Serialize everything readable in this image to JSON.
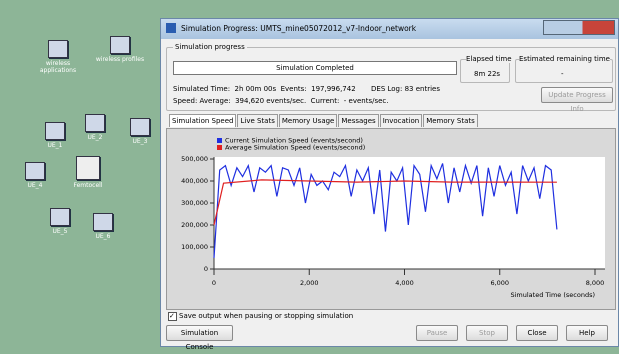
{
  "desktop": {
    "icons": [
      "wireless applications",
      "wireless profiles",
      "UE_1",
      "UE_2",
      "UE_3",
      "UE_4",
      "Femtocell",
      "UE_5",
      "UE_6"
    ]
  },
  "window": {
    "title": "Simulation Progress: UMTS_mine05072012_v7-Indoor_network",
    "progress_group": "Simulation progress",
    "progress_status": "Simulation Completed",
    "elapsed_label": "Elapsed time",
    "elapsed_value": "8m 22s",
    "remaining_label": "Estimated remaining time",
    "remaining_value": "-",
    "simulated_time": "Simulated Time:  2h 00m 00s  Events:  197,996,742",
    "des_log": "DES Log: 83 entries",
    "speed": "Speed: Average:  394,620 events/sec.  Current:  - events/sec.",
    "update_button": "Update Progress Info",
    "tabs": [
      "Simulation Speed",
      "Live Stats",
      "Memory Usage",
      "Messages",
      "Invocation",
      "Memory Stats"
    ],
    "checkbox": "Save output when pausing or stopping simulation",
    "buttons": [
      "Simulation Console",
      "Pause",
      "Stop",
      "Close",
      "Help"
    ]
  },
  "chart_data": {
    "type": "line",
    "xlabel": "Simulated Time (seconds)",
    "xlim": [
      0,
      8000
    ],
    "xticks": [
      0,
      {
        "value": 2000,
        "label": "2,000"
      },
      {
        "value": 4000,
        "label": "4,000"
      },
      {
        "value": 6000,
        "label": "6,000"
      },
      {
        "value": 8000,
        "label": "8,000"
      }
    ],
    "ylim": [
      0,
      500000
    ],
    "yticks": [
      0,
      {
        "value": 100000,
        "label": "100,000"
      },
      {
        "value": 200000,
        "label": "200,000"
      },
      {
        "value": 300000,
        "label": "300,000"
      },
      {
        "value": 400000,
        "label": "400,000"
      },
      {
        "value": 500000,
        "label": "500,000"
      }
    ],
    "series": [
      {
        "name": "Current Simulation Speed (events/second)",
        "color": "#1f2fe0",
        "x": [
          0,
          120,
          240,
          360,
          480,
          600,
          720,
          840,
          960,
          1080,
          1200,
          1320,
          1440,
          1560,
          1680,
          1800,
          1920,
          2040,
          2160,
          2280,
          2400,
          2520,
          2640,
          2760,
          2880,
          3000,
          3120,
          3240,
          3360,
          3480,
          3600,
          3720,
          3840,
          3960,
          4080,
          4200,
          4320,
          4440,
          4560,
          4680,
          4800,
          4920,
          5040,
          5160,
          5280,
          5400,
          5520,
          5640,
          5760,
          5880,
          6000,
          6120,
          6240,
          6360,
          6480,
          6600,
          6720,
          6840,
          6960,
          7080,
          7200
        ],
        "values": [
          50000,
          450000,
          470000,
          380000,
          460000,
          420000,
          470000,
          350000,
          460000,
          440000,
          470000,
          330000,
          460000,
          450000,
          380000,
          460000,
          300000,
          430000,
          380000,
          400000,
          360000,
          440000,
          420000,
          470000,
          330000,
          450000,
          400000,
          460000,
          250000,
          450000,
          170000,
          440000,
          400000,
          460000,
          200000,
          470000,
          430000,
          260000,
          470000,
          410000,
          480000,
          300000,
          460000,
          350000,
          470000,
          390000,
          470000,
          240000,
          460000,
          330000,
          470000,
          380000,
          440000,
          250000,
          470000,
          400000,
          460000,
          320000,
          470000,
          450000,
          180000
        ]
      },
      {
        "name": "Average Simulation Speed (events/second)",
        "color": "#e02020",
        "x": [
          0,
          200,
          1000,
          2000,
          3000,
          4000,
          5000,
          6000,
          7200
        ],
        "values": [
          200000,
          390000,
          405000,
          400000,
          395000,
          400000,
          395000,
          395000,
          394620
        ]
      }
    ]
  }
}
